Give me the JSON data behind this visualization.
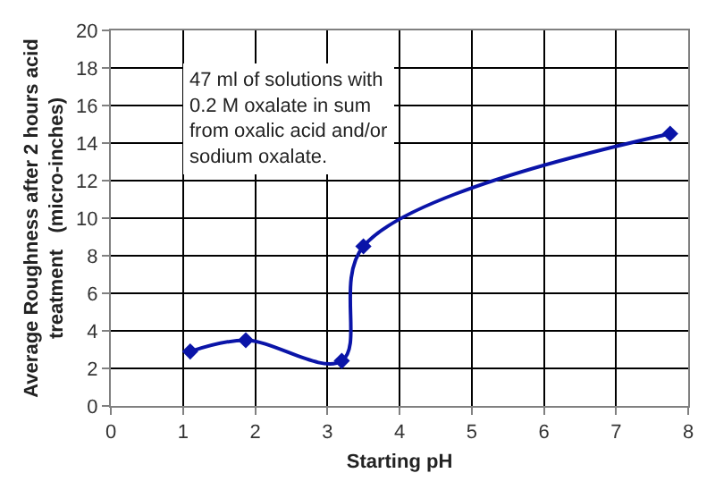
{
  "chart_data": {
    "type": "line",
    "xlabel": "Starting pH",
    "ylabel": "Average Roughness after 2 hours acid\ntreatment   (micro-inches)",
    "annotations": [
      "47 ml of solutions with\n0.2 M oxalate in sum\nfrom oxalic acid and/or\nsodium oxalate."
    ],
    "series": [
      {
        "color": "#0a14a8",
        "x": [
          1.1,
          1.87,
          3.2,
          3.5,
          7.75
        ],
        "values": [
          2.9,
          3.5,
          2.4,
          8.5,
          14.5
        ]
      }
    ],
    "xlim": [
      0,
      8
    ],
    "xticks": [
      0,
      1,
      2,
      3,
      4,
      5,
      6,
      7,
      8
    ],
    "ylim": [
      0,
      20
    ],
    "yticks": [
      0,
      2,
      4,
      6,
      8,
      10,
      12,
      14,
      16,
      18,
      20
    ],
    "grid": true,
    "marker": "diamond",
    "line_style": "solid"
  }
}
